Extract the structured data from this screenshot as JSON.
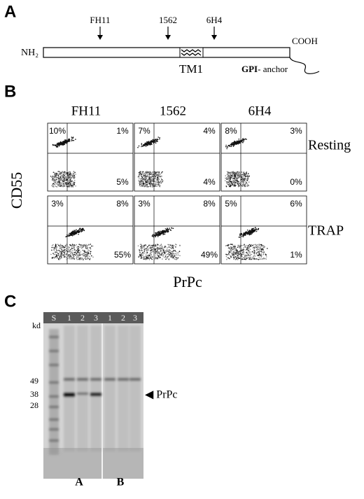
{
  "panel_a": {
    "label": "A",
    "n_terminus": "NH₂",
    "antibodies": [
      "FH11",
      "1562",
      "6H4"
    ],
    "tm": "TM1",
    "c_terminus": "COOH",
    "gpi_bold": "GPI",
    "gpi_rest": "- anchor"
  },
  "panel_b": {
    "label": "B",
    "columns": [
      "FH11",
      "1562",
      "6H4"
    ],
    "y_axis": "CD55",
    "x_axis": "PrPc",
    "rows": [
      {
        "label": "Resting",
        "quadrants": [
          [
            "10%",
            "1%",
            "5%"
          ],
          [
            "7%",
            "4%",
            "4%"
          ],
          [
            "8%",
            "3%",
            "0%"
          ]
        ]
      },
      {
        "label": "TRAP",
        "quadrants": [
          [
            "3%",
            "8%",
            "55%"
          ],
          [
            "3%",
            "8%",
            "49%"
          ],
          [
            "5%",
            "6%",
            "1%"
          ]
        ]
      }
    ]
  },
  "panel_c": {
    "label": "C",
    "lanes": [
      "S",
      "1",
      "2",
      "3",
      "1",
      "2",
      "3"
    ],
    "unit": "kd",
    "markers": [
      "49",
      "38",
      "28"
    ],
    "band_label": "◀ PrPc",
    "groups": [
      "A",
      "B"
    ]
  }
}
